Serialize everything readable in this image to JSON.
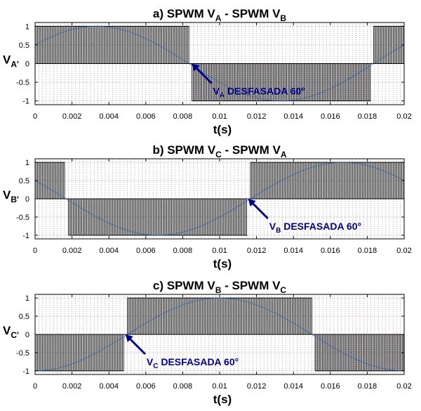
{
  "chart_data": [
    {
      "type": "line",
      "title": {
        "a": "a) SPWM V",
        "sub1": "A",
        "b": " - SPWM V",
        "sub2": "B"
      },
      "ylabel": {
        "main": "V",
        "sub": "A'"
      },
      "xlabel": "t(s)",
      "xlim": [
        0,
        0.02
      ],
      "ylim": [
        -1.1,
        1.1
      ],
      "xticks": [
        "0",
        "0.002",
        "0.004",
        "0.006",
        "0.008",
        "0.01",
        "0.012",
        "0.014",
        "0.016",
        "0.018",
        "0.02"
      ],
      "yticks": [
        "1",
        "0.5",
        "0",
        "-0.5",
        "-1"
      ],
      "grid": true,
      "carrier_cycles": 150,
      "segments": [
        {
          "x0": 0,
          "x1": 0.00834,
          "level": 1
        },
        {
          "x0": 0.00834,
          "x1": 0.0085,
          "level": 0
        },
        {
          "x0": 0.0085,
          "x1": 0.0182,
          "level": -1
        },
        {
          "x0": 0.0182,
          "x1": 0.01834,
          "level": 0
        },
        {
          "x0": 0.01834,
          "x1": 0.02,
          "level": 1
        }
      ],
      "annotation": {
        "main": "V",
        "sub": "A",
        "text": " DESFASADA 60°",
        "x": 0.0085,
        "y": 0
      }
    },
    {
      "type": "line",
      "title": {
        "a": "b) SPWM V",
        "sub1": "C",
        "b": " - SPWM V",
        "sub2": "A"
      },
      "ylabel": {
        "main": "V",
        "sub": "B'"
      },
      "xlabel": "t(s)",
      "xlim": [
        0,
        0.02
      ],
      "ylim": [
        -1.1,
        1.1
      ],
      "xticks": [
        "0",
        "0.002",
        "0.004",
        "0.006",
        "0.008",
        "0.01",
        "0.012",
        "0.014",
        "0.016",
        "0.018",
        "0.02"
      ],
      "yticks": [
        "1",
        "0.5",
        "0",
        "-0.5",
        "-1"
      ],
      "grid": true,
      "carrier_cycles": 150,
      "segments": [
        {
          "x0": 0,
          "x1": 0.0016,
          "level": 1
        },
        {
          "x0": 0.0016,
          "x1": 0.0018,
          "level": 0
        },
        {
          "x0": 0.0018,
          "x1": 0.0115,
          "level": -1
        },
        {
          "x0": 0.0115,
          "x1": 0.01167,
          "level": 0
        },
        {
          "x0": 0.01167,
          "x1": 0.02,
          "level": 1
        }
      ],
      "annotation": {
        "main": "V",
        "sub": "B",
        "text": " DESFASADA 60°",
        "x": 0.01155,
        "y": 0
      }
    },
    {
      "type": "line",
      "title": {
        "a": "c) SPWM V",
        "sub1": "B",
        "b": " - SPWM V",
        "sub2": "C"
      },
      "ylabel": {
        "main": "V",
        "sub": "C'"
      },
      "xlabel": "t(s)",
      "xlim": [
        0,
        0.02
      ],
      "ylim": [
        -1.1,
        1.1
      ],
      "xticks": [
        "0",
        "0.002",
        "0.004",
        "0.006",
        "0.008",
        "0.01",
        "0.012",
        "0.014",
        "0.016",
        "0.018",
        "0.02"
      ],
      "yticks": [
        "1",
        "0.5",
        "0",
        "-0.5",
        "-1"
      ],
      "grid": true,
      "carrier_cycles": 150,
      "segments": [
        {
          "x0": 0,
          "x1": 0.0048,
          "level": -1
        },
        {
          "x0": 0.0048,
          "x1": 0.005,
          "level": 0
        },
        {
          "x0": 0.005,
          "x1": 0.015,
          "level": 1
        },
        {
          "x0": 0.015,
          "x1": 0.01517,
          "level": 0
        },
        {
          "x0": 0.01517,
          "x1": 0.02,
          "level": -1
        }
      ],
      "annotation": {
        "main": "V",
        "sub": "C",
        "text": " DESFASADA 60°",
        "x": 0.0049,
        "y": 0
      }
    }
  ],
  "colors": {
    "signal": "#000000",
    "reference": "#1f5fa8",
    "annotation": "#00008b",
    "grid_a": "#3a3aa8",
    "grid_b": "#c23a3a",
    "axes": "#000000"
  }
}
